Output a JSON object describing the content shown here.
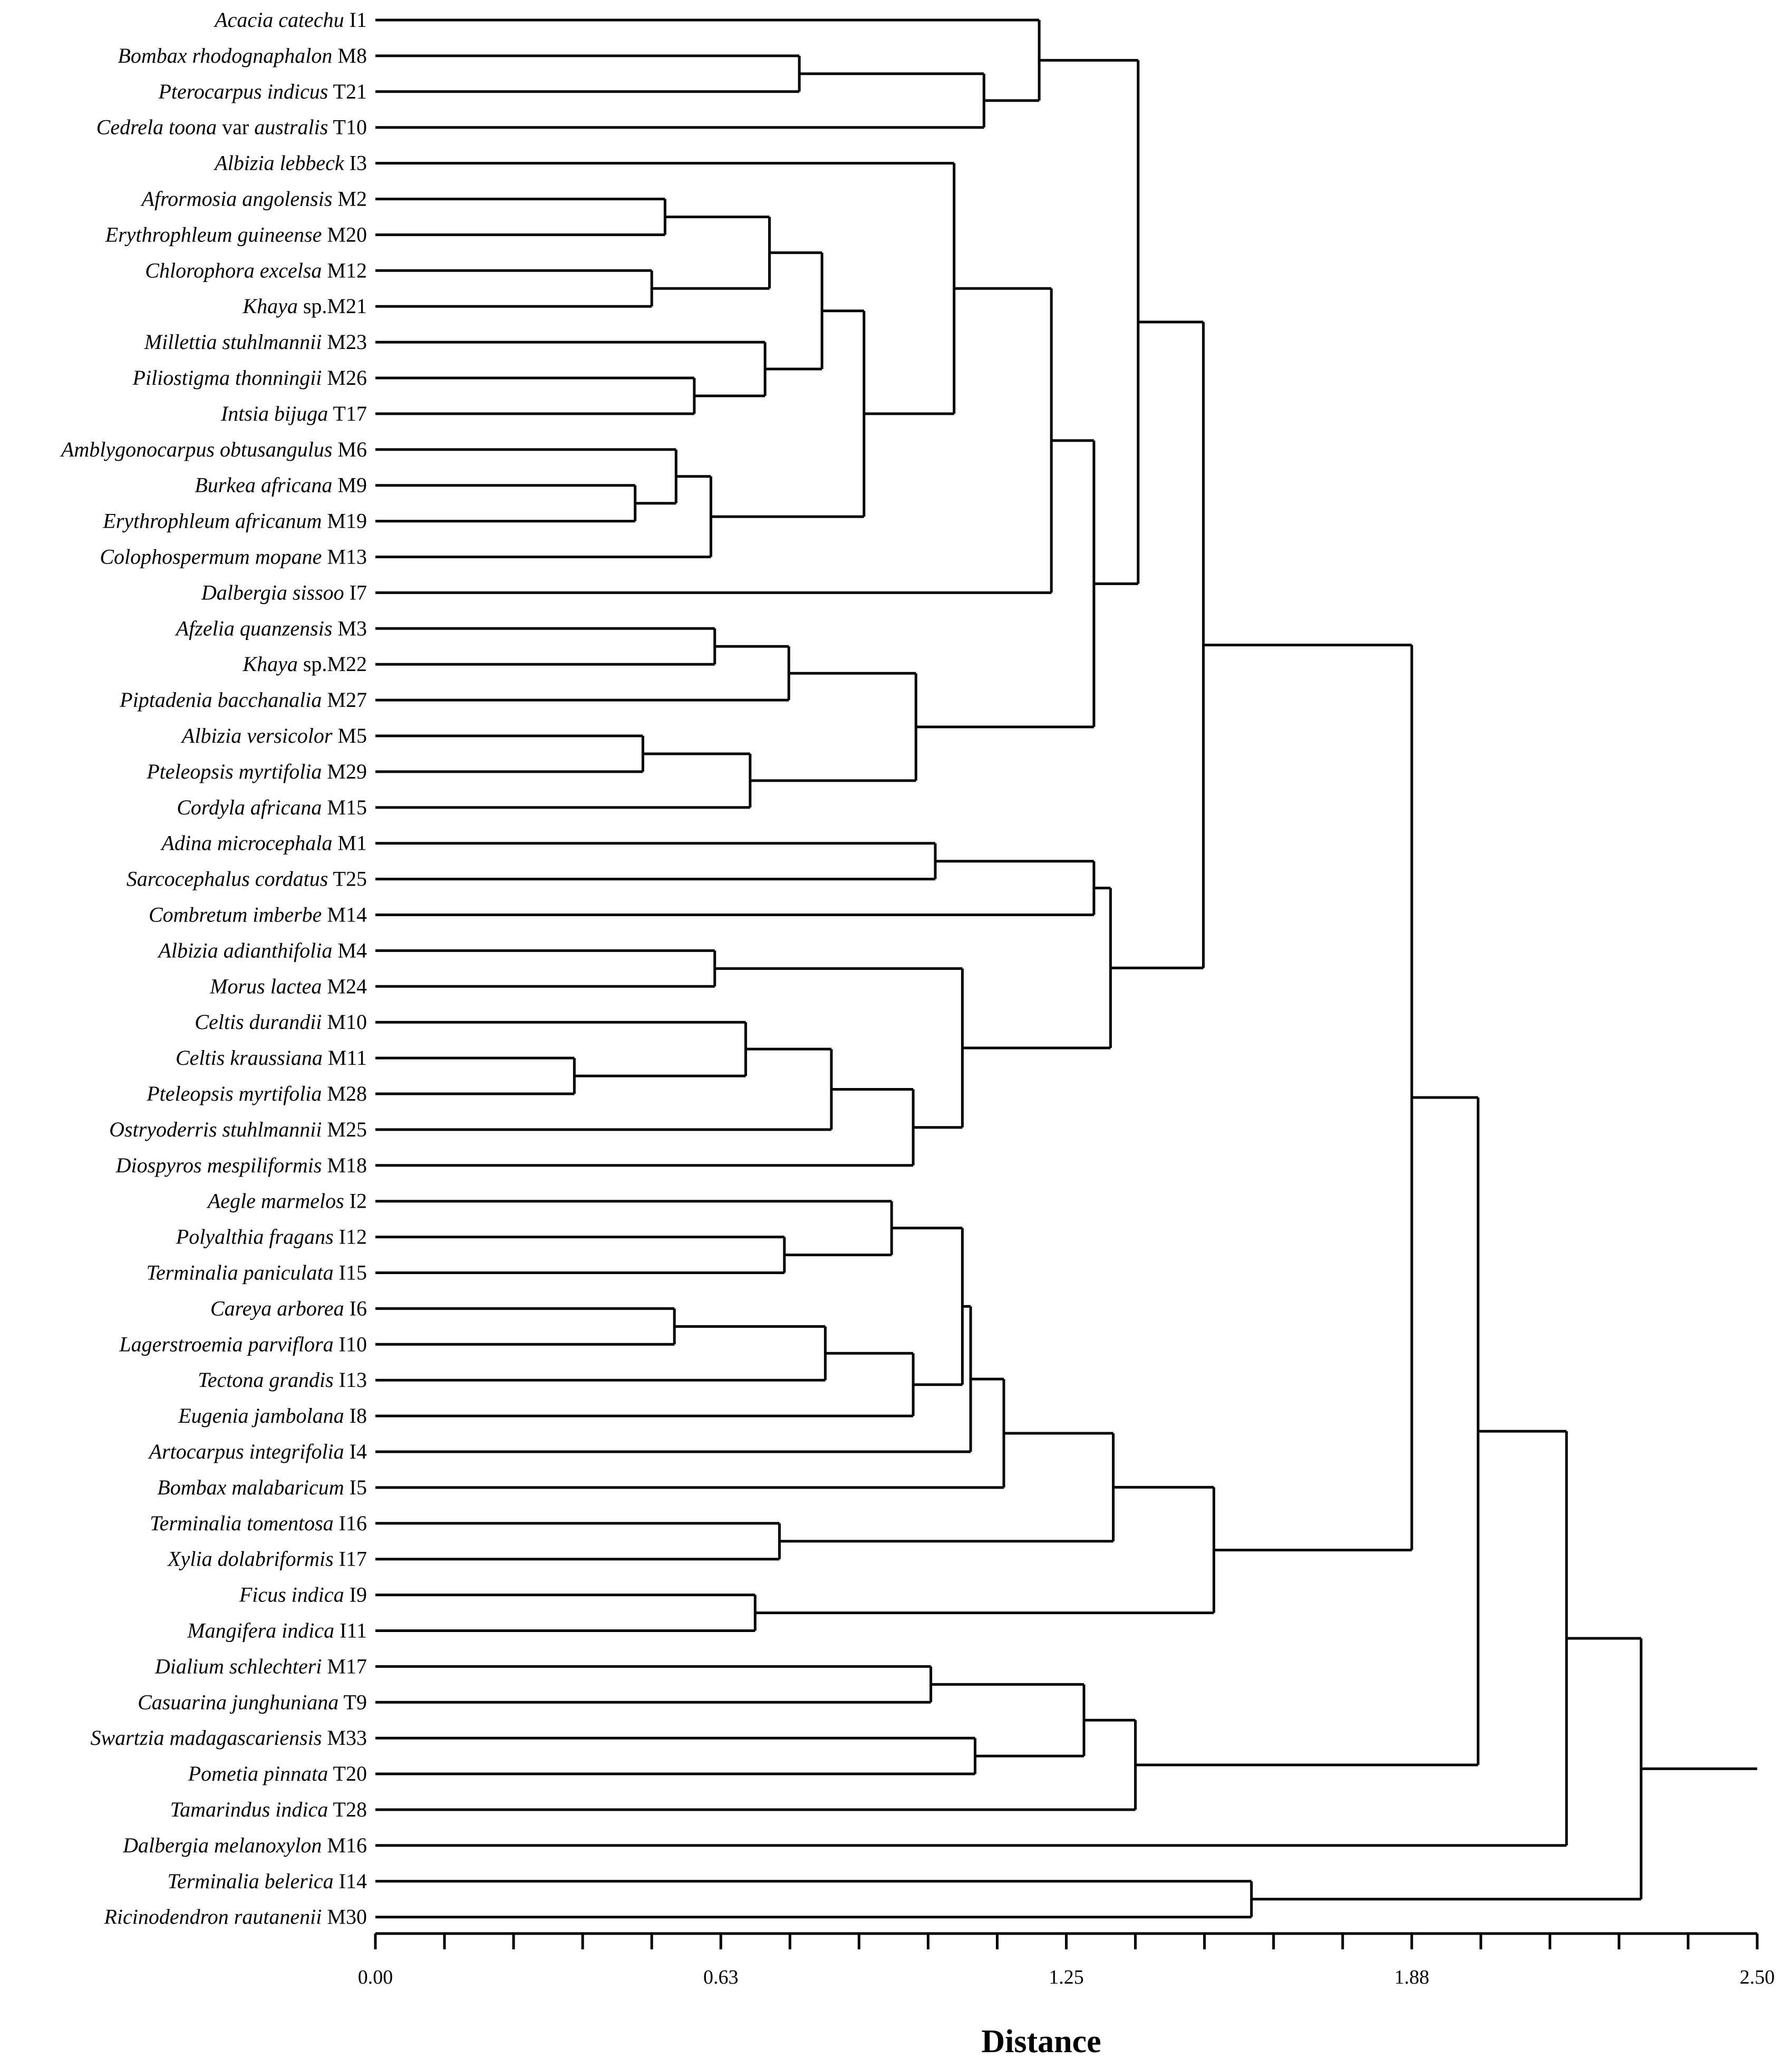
{
  "chart_data": {
    "type": "dendrogram",
    "xlabel": "Distance",
    "xlim": [
      0,
      2.5
    ],
    "ticks": [
      {
        "value": 0.0,
        "label": "0.00"
      },
      {
        "value": 0.625,
        "label": "0.63"
      },
      {
        "value": 1.25,
        "label": "1.25"
      },
      {
        "value": 1.875,
        "label": "1.88"
      },
      {
        "value": 2.5,
        "label": "2.50"
      }
    ],
    "minor_tick_step": 0.125,
    "leaves": [
      {
        "id": "I1",
        "species": "Acacia catechu",
        "suffix": " I1"
      },
      {
        "id": "M8",
        "species": "Bombax rhodognaphalon",
        "suffix": " M8"
      },
      {
        "id": "T21",
        "species": "Pterocarpus indicus",
        "suffix": " T21"
      },
      {
        "id": "T10",
        "species": "Cedrela toona",
        "suffix": " var ",
        "species2": "australis",
        "suffix2": " T10"
      },
      {
        "id": "I3",
        "species": "Albizia lebbeck",
        "suffix": " I3"
      },
      {
        "id": "M2",
        "species": "Afrormosia angolensis",
        "suffix": " M2"
      },
      {
        "id": "M20",
        "species": "Erythrophleum guineense",
        "suffix": " M20"
      },
      {
        "id": "M12",
        "species": "Chlorophora excelsa",
        "suffix": " M12"
      },
      {
        "id": "M21",
        "species": "Khaya",
        "suffix": " sp.M21"
      },
      {
        "id": "M23",
        "species": "Millettia stuhlmannii",
        "suffix": " M23"
      },
      {
        "id": "M26",
        "species": "Piliostigma thonningii",
        "suffix": " M26"
      },
      {
        "id": "T17",
        "species": "Intsia bijuga",
        "suffix": " T17"
      },
      {
        "id": "M6",
        "species": "Amblygonocarpus obtusangulus",
        "suffix": " M6"
      },
      {
        "id": "M9",
        "species": "Burkea africana",
        "suffix": " M9"
      },
      {
        "id": "M19",
        "species": "Erythrophleum africanum",
        "suffix": " M19"
      },
      {
        "id": "M13",
        "species": "Colophospermum mopane",
        "suffix": " M13"
      },
      {
        "id": "I7",
        "species": "Dalbergia sissoo",
        "suffix": " I7"
      },
      {
        "id": "M3",
        "species": "Afzelia quanzensis",
        "suffix": " M3"
      },
      {
        "id": "M22",
        "species": "Khaya",
        "suffix": " sp.M22"
      },
      {
        "id": "M27",
        "species": "Piptadenia bacchanalia",
        "suffix": " M27"
      },
      {
        "id": "M5",
        "species": "Albizia versicolor",
        "suffix": " M5"
      },
      {
        "id": "M29",
        "species": "Pteleopsis myrtifolia",
        "suffix": " M29"
      },
      {
        "id": "M15",
        "species": "Cordyla africana",
        "suffix": " M15"
      },
      {
        "id": "M1",
        "species": "Adina microcephala",
        "suffix": " M1"
      },
      {
        "id": "T25",
        "species": "Sarcocephalus cordatus",
        "suffix": " T25"
      },
      {
        "id": "M14",
        "species": "Combretum imberbe",
        "suffix": " M14"
      },
      {
        "id": "M4",
        "species": "Albizia adianthifolia",
        "suffix": " M4"
      },
      {
        "id": "M24",
        "species": "Morus lactea",
        "suffix": " M24"
      },
      {
        "id": "M10",
        "species": "Celtis durandii",
        "suffix": " M10"
      },
      {
        "id": "M11",
        "species": "Celtis kraussiana",
        "suffix": " M11"
      },
      {
        "id": "M28",
        "species": "Pteleopsis myrtifolia",
        "suffix": " M28"
      },
      {
        "id": "M25",
        "species": "Ostryoderris stuhlmannii",
        "suffix": " M25"
      },
      {
        "id": "M18",
        "species": "Diospyros mespiliformis",
        "suffix": " M18"
      },
      {
        "id": "I2",
        "species": "Aegle marmelos",
        "suffix": " I2"
      },
      {
        "id": "I12",
        "species": "Polyalthia fragans",
        "suffix": " I12"
      },
      {
        "id": "I15",
        "species": "Terminalia paniculata",
        "suffix": " I15"
      },
      {
        "id": "I6",
        "species": "Careya arborea",
        "suffix": " I6"
      },
      {
        "id": "I10",
        "species": "Lagerstroemia parviflora",
        "suffix": " I10"
      },
      {
        "id": "I13",
        "species": "Tectona grandis",
        "suffix": " I13"
      },
      {
        "id": "I8",
        "species": "Eugenia jambolana",
        "suffix": " I8"
      },
      {
        "id": "I4",
        "species": "Artocarpus integrifolia",
        "suffix": " I4"
      },
      {
        "id": "I5",
        "species": "Bombax malabaricum",
        "suffix": " I5"
      },
      {
        "id": "I16",
        "species": "Terminalia tomentosa",
        "suffix": " I16"
      },
      {
        "id": "I17",
        "species": "Xylia dolabriformis",
        "suffix": " I17"
      },
      {
        "id": "I9",
        "species": "Ficus indica",
        "suffix": " I9"
      },
      {
        "id": "I11",
        "species": "Mangifera indica",
        "suffix": " I11"
      },
      {
        "id": "M17",
        "species": "Dialium schlechteri",
        "suffix": " M17"
      },
      {
        "id": "T9",
        "species": "Casuarina junghuniana",
        "suffix": " T9"
      },
      {
        "id": "M33",
        "species": "Swartzia madagascariensis",
        "suffix": " M33"
      },
      {
        "id": "T20",
        "species": "Pometia pinnata",
        "suffix": " T20"
      },
      {
        "id": "T28",
        "species": "Tamarindus indica",
        "suffix": " T28"
      },
      {
        "id": "M16",
        "species": "Dalbergia melanoxylon",
        "suffix": " M16"
      },
      {
        "id": "I14",
        "species": "Terminalia belerica",
        "suffix": " I14"
      },
      {
        "id": "M30",
        "species": "Ricinodendron rautanenii",
        "suffix": " M30"
      }
    ],
    "merges": [
      {
        "id": "a",
        "children": [
          "M8",
          "T21"
        ],
        "height": 0.767
      },
      {
        "id": "b",
        "children": [
          "a",
          "T10"
        ],
        "height": 1.101
      },
      {
        "id": "c",
        "children": [
          "I1",
          "b"
        ],
        "height": 1.201
      },
      {
        "id": "d",
        "children": [
          "M2",
          "M20"
        ],
        "height": 0.524
      },
      {
        "id": "e",
        "children": [
          "M12",
          "M21"
        ],
        "height": 0.5
      },
      {
        "id": "f",
        "children": [
          "d",
          "e"
        ],
        "height": 0.713
      },
      {
        "id": "g",
        "children": [
          "M26",
          "T17"
        ],
        "height": 0.577
      },
      {
        "id": "h",
        "children": [
          "M23",
          "g"
        ],
        "height": 0.705
      },
      {
        "id": "i",
        "children": [
          "f",
          "h"
        ],
        "height": 0.808
      },
      {
        "id": "j",
        "children": [
          "M9",
          "M19"
        ],
        "height": 0.47
      },
      {
        "id": "k",
        "children": [
          "M6",
          "j"
        ],
        "height": 0.544
      },
      {
        "id": "l",
        "children": [
          "k",
          "M13"
        ],
        "height": 0.607
      },
      {
        "id": "m",
        "children": [
          "i",
          "l"
        ],
        "height": 0.884
      },
      {
        "id": "n",
        "children": [
          "I3",
          "m"
        ],
        "height": 1.047
      },
      {
        "id": "o",
        "children": [
          "n",
          "I7"
        ],
        "height": 1.223
      },
      {
        "id": "p",
        "children": [
          "M3",
          "M22"
        ],
        "height": 0.614
      },
      {
        "id": "q",
        "children": [
          "p",
          "M27"
        ],
        "height": 0.748
      },
      {
        "id": "r",
        "children": [
          "M5",
          "M29"
        ],
        "height": 0.484
      },
      {
        "id": "s",
        "children": [
          "r",
          "M15"
        ],
        "height": 0.678
      },
      {
        "id": "t",
        "children": [
          "q",
          "s"
        ],
        "height": 0.978
      },
      {
        "id": "u",
        "children": [
          "o",
          "t"
        ],
        "height": 1.3
      },
      {
        "id": "v",
        "children": [
          "c",
          "u"
        ],
        "height": 1.38
      },
      {
        "id": "w",
        "children": [
          "M1",
          "T25"
        ],
        "height": 1.013
      },
      {
        "id": "x",
        "children": [
          "w",
          "M14"
        ],
        "height": 1.3
      },
      {
        "id": "y",
        "children": [
          "M4",
          "M24"
        ],
        "height": 0.614
      },
      {
        "id": "z",
        "children": [
          "M11",
          "M28"
        ],
        "height": 0.36
      },
      {
        "id": "aa",
        "children": [
          "M10",
          "z"
        ],
        "height": 0.67
      },
      {
        "id": "ab",
        "children": [
          "aa",
          "M25"
        ],
        "height": 0.825
      },
      {
        "id": "ac",
        "children": [
          "ab",
          "M18"
        ],
        "height": 0.973
      },
      {
        "id": "ad",
        "children": [
          "y",
          "ac"
        ],
        "height": 1.062
      },
      {
        "id": "ae",
        "children": [
          "x",
          "ad"
        ],
        "height": 1.33
      },
      {
        "id": "af",
        "children": [
          "v",
          "ae"
        ],
        "height": 1.498
      },
      {
        "id": "ag",
        "children": [
          "I12",
          "I15"
        ],
        "height": 0.74
      },
      {
        "id": "ah",
        "children": [
          "I2",
          "ag"
        ],
        "height": 0.934
      },
      {
        "id": "ai",
        "children": [
          "I6",
          "I10"
        ],
        "height": 0.541
      },
      {
        "id": "aj",
        "children": [
          "ai",
          "I13"
        ],
        "height": 0.814
      },
      {
        "id": "ak",
        "children": [
          "aj",
          "I8"
        ],
        "height": 0.973
      },
      {
        "id": "al",
        "children": [
          "ah",
          "ak"
        ],
        "height": 1.062
      },
      {
        "id": "am",
        "children": [
          "al",
          "I4"
        ],
        "height": 1.077
      },
      {
        "id": "an",
        "children": [
          "am",
          "I5"
        ],
        "height": 1.137
      },
      {
        "id": "ao",
        "children": [
          "I16",
          "I17"
        ],
        "height": 0.731
      },
      {
        "id": "ap",
        "children": [
          "an",
          "ao"
        ],
        "height": 1.335
      },
      {
        "id": "aq",
        "children": [
          "I9",
          "I11"
        ],
        "height": 0.687
      },
      {
        "id": "ar",
        "children": [
          "ap",
          "aq"
        ],
        "height": 1.517
      },
      {
        "id": "as",
        "children": [
          "af",
          "ar"
        ],
        "height": 1.875
      },
      {
        "id": "at",
        "children": [
          "M17",
          "T9"
        ],
        "height": 1.005
      },
      {
        "id": "au",
        "children": [
          "M33",
          "T20"
        ],
        "height": 1.085
      },
      {
        "id": "av",
        "children": [
          "at",
          "au"
        ],
        "height": 1.282
      },
      {
        "id": "aw",
        "children": [
          "av",
          "T28"
        ],
        "height": 1.375
      },
      {
        "id": "ax",
        "children": [
          "as",
          "aw"
        ],
        "height": 1.995
      },
      {
        "id": "ay",
        "children": [
          "ax",
          "M16"
        ],
        "height": 2.155
      },
      {
        "id": "az",
        "children": [
          "I14",
          "M30"
        ],
        "height": 1.585
      },
      {
        "id": "ba",
        "children": [
          "ay",
          "az"
        ],
        "height": 2.29
      }
    ],
    "root": "ba",
    "root_extent": 2.5
  }
}
